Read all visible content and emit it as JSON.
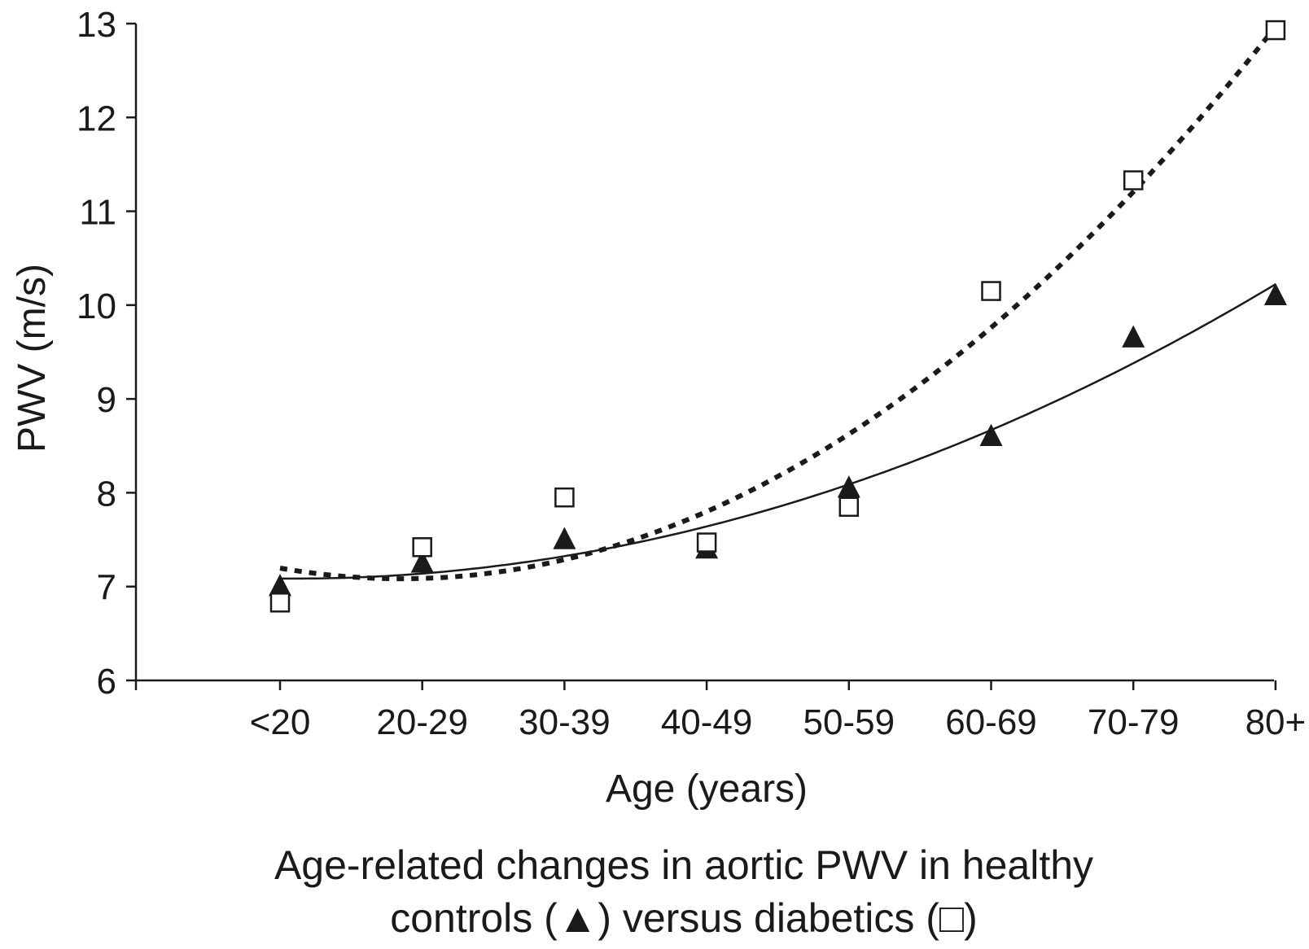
{
  "chart_data": {
    "type": "scatter",
    "title": "",
    "xlabel": "Age (years)",
    "ylabel": "PWV (m/s)",
    "categories": [
      "<20",
      "20-29",
      "30-39",
      "40-49",
      "50-59",
      "60-69",
      "70-79",
      "80+"
    ],
    "ylim": [
      6,
      13
    ],
    "yticks": [
      "6",
      "7",
      "8",
      "9",
      "10",
      "11",
      "12",
      "13"
    ],
    "grid": false,
    "legend": "none",
    "caption": [
      "Age-related changes in aortic PWV in healthy",
      "controls (▲) versus diabetics (□)"
    ],
    "series": [
      {
        "marker": "filled-triangle",
        "trendline": "solid",
        "color": "#1a1a1a",
        "values": [
          7.0,
          7.25,
          7.5,
          7.4,
          8.05,
          8.6,
          9.65,
          10.1
        ]
      },
      {
        "marker": "open-square",
        "trendline": "dotted",
        "color": "#1a1a1a",
        "values": [
          6.83,
          7.42,
          7.95,
          7.47,
          7.85,
          10.15,
          11.33,
          12.93
        ]
      }
    ]
  }
}
